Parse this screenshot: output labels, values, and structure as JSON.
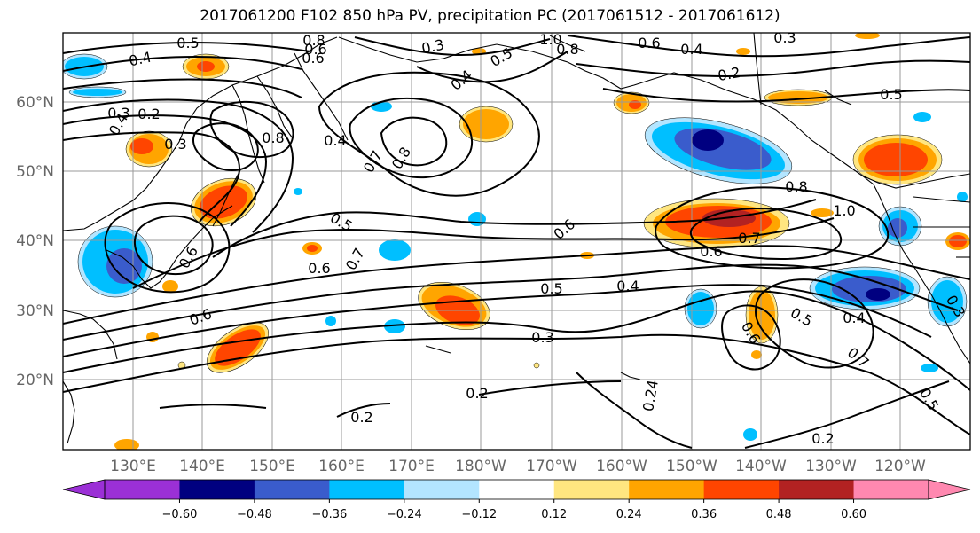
{
  "title": "2017061200 F102 850 hPa PV, precipitation PC (2017061512 - 2017061612)",
  "lat_labels": [
    "60°N",
    "50°N",
    "40°N",
    "30°N",
    "20°N"
  ],
  "lon_labels": [
    "130°E",
    "140°E",
    "150°E",
    "160°E",
    "170°E",
    "180°W",
    "170°W",
    "160°W",
    "150°W",
    "140°W",
    "130°W",
    "120°W"
  ],
  "contour_labels": [
    "0.5",
    "0.4",
    "0.3",
    "0.2",
    "0.8",
    "0.6",
    "1.0",
    "0.4",
    "0.2",
    "0.5",
    "0.8",
    "0.6",
    "0.5",
    "0.7",
    "0.6",
    "0.6",
    "0.5",
    "0.4",
    "0.3",
    "0.6",
    "0.6",
    "0.7",
    "0.6",
    "0.5",
    "0.4",
    "0.7",
    "0.5",
    "0.2",
    "0.2",
    "0.24",
    "0.2",
    "0.8",
    "1.0",
    "0.6",
    "0.7"
  ],
  "colorbar": {
    "tick_labels": [
      "−0.60",
      "−0.48",
      "−0.36",
      "−0.24",
      "−0.12",
      "0.12",
      "0.24",
      "0.36",
      "0.48",
      "0.60"
    ],
    "colors": [
      "#9b30d6",
      "#000080",
      "#3a5ccc",
      "#00bfff",
      "#b3e5ff",
      "#ffffff",
      "#ffe680",
      "#ffa500",
      "#ff4500",
      "#b22222",
      "#ff88b0"
    ]
  },
  "anomaly_colors": {
    "neg_weak": "#b3e5ff",
    "neg_mid": "#00bfff",
    "neg_strong": "#3a5ccc",
    "neg_max": "#000080",
    "pos_weak": "#ffe680",
    "pos_mid": "#ffa500",
    "pos_strong": "#ff4500",
    "pos_max": "#b22222"
  }
}
